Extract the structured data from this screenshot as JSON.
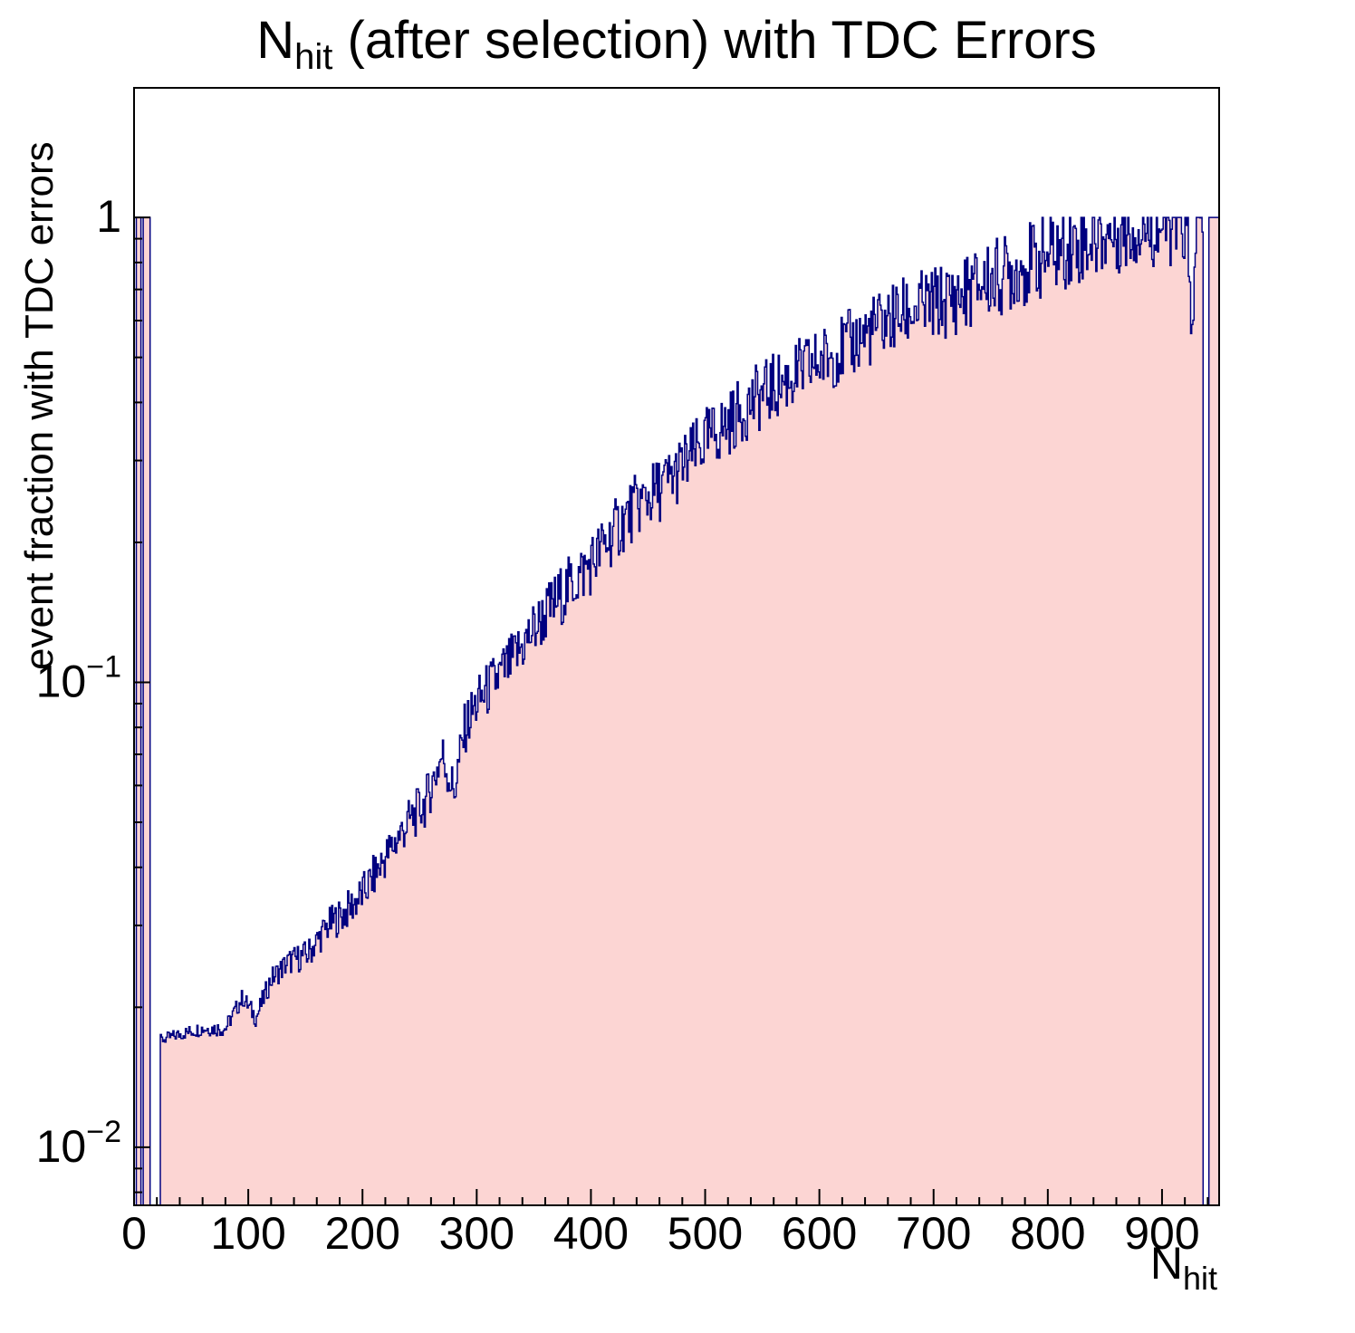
{
  "chart_data": {
    "type": "bar",
    "subtype": "histogram-log-y",
    "title": {
      "prefix": "N",
      "subscript": "hit",
      "suffix": " (after selection) with TDC Errors"
    },
    "xlabel": {
      "prefix": "N",
      "subscript": "hit"
    },
    "ylabel": "event fraction with TDC errors",
    "xlim": [
      0,
      950
    ],
    "ylim": [
      0.0075,
      1.9
    ],
    "yscale": "log",
    "bin_width": 1,
    "grid": false,
    "legend": "none",
    "x_ticks": {
      "major": [
        0,
        100,
        200,
        300,
        400,
        500,
        600,
        700,
        800,
        900
      ],
      "minor_step": 20
    },
    "y_ticks": [
      {
        "value": 1,
        "base": "1",
        "exp": ""
      },
      {
        "value": 0.1,
        "base": "10",
        "exp": "−1"
      },
      {
        "value": 0.01,
        "base": "10",
        "exp": "−2"
      }
    ],
    "colors": {
      "fill": "#fcd5d3",
      "line": "#000080",
      "frame": "#000000",
      "text": "#000000",
      "background": "#ffffff"
    },
    "full_bins": [
      [
        2,
        5
      ],
      [
        8,
        13
      ],
      [
        941,
        949
      ]
    ],
    "empty_bins": [
      [
        0,
        1
      ],
      [
        6,
        7
      ],
      [
        14,
        22
      ],
      [
        936,
        940
      ]
    ],
    "trend_points": [
      [
        23,
        0.017
      ],
      [
        40,
        0.0175
      ],
      [
        60,
        0.018
      ],
      [
        80,
        0.018
      ],
      [
        95,
        0.021
      ],
      [
        107,
        0.019
      ],
      [
        120,
        0.023
      ],
      [
        135,
        0.025
      ],
      [
        152,
        0.026
      ],
      [
        170,
        0.03
      ],
      [
        185,
        0.032
      ],
      [
        200,
        0.035
      ],
      [
        220,
        0.042
      ],
      [
        240,
        0.05
      ],
      [
        255,
        0.055
      ],
      [
        270,
        0.07
      ],
      [
        280,
        0.058
      ],
      [
        290,
        0.08
      ],
      [
        300,
        0.09
      ],
      [
        315,
        0.1
      ],
      [
        330,
        0.11
      ],
      [
        350,
        0.13
      ],
      [
        375,
        0.155
      ],
      [
        400,
        0.18
      ],
      [
        420,
        0.21
      ],
      [
        440,
        0.24
      ],
      [
        460,
        0.26
      ],
      [
        480,
        0.29
      ],
      [
        500,
        0.33
      ],
      [
        520,
        0.36
      ],
      [
        540,
        0.4
      ],
      [
        560,
        0.43
      ],
      [
        580,
        0.46
      ],
      [
        600,
        0.49
      ],
      [
        620,
        0.52
      ],
      [
        640,
        0.56
      ],
      [
        660,
        0.6
      ],
      [
        680,
        0.63
      ],
      [
        700,
        0.65
      ],
      [
        720,
        0.67
      ],
      [
        740,
        0.72
      ],
      [
        760,
        0.75
      ],
      [
        780,
        0.79
      ],
      [
        800,
        0.83
      ],
      [
        820,
        0.87
      ],
      [
        840,
        0.9
      ],
      [
        860,
        0.93
      ],
      [
        880,
        0.95
      ],
      [
        900,
        0.96
      ],
      [
        915,
        0.96
      ],
      [
        922,
        0.95
      ],
      [
        926,
        0.5
      ],
      [
        929,
        0.95
      ],
      [
        935,
        0.97
      ]
    ],
    "jitter_log10": [
      [
        23,
        0.012
      ],
      [
        100,
        0.02
      ],
      [
        200,
        0.045
      ],
      [
        300,
        0.06
      ],
      [
        400,
        0.07
      ],
      [
        600,
        0.075
      ],
      [
        800,
        0.09
      ],
      [
        950,
        0.09
      ]
    ],
    "noise_seed": 7
  }
}
